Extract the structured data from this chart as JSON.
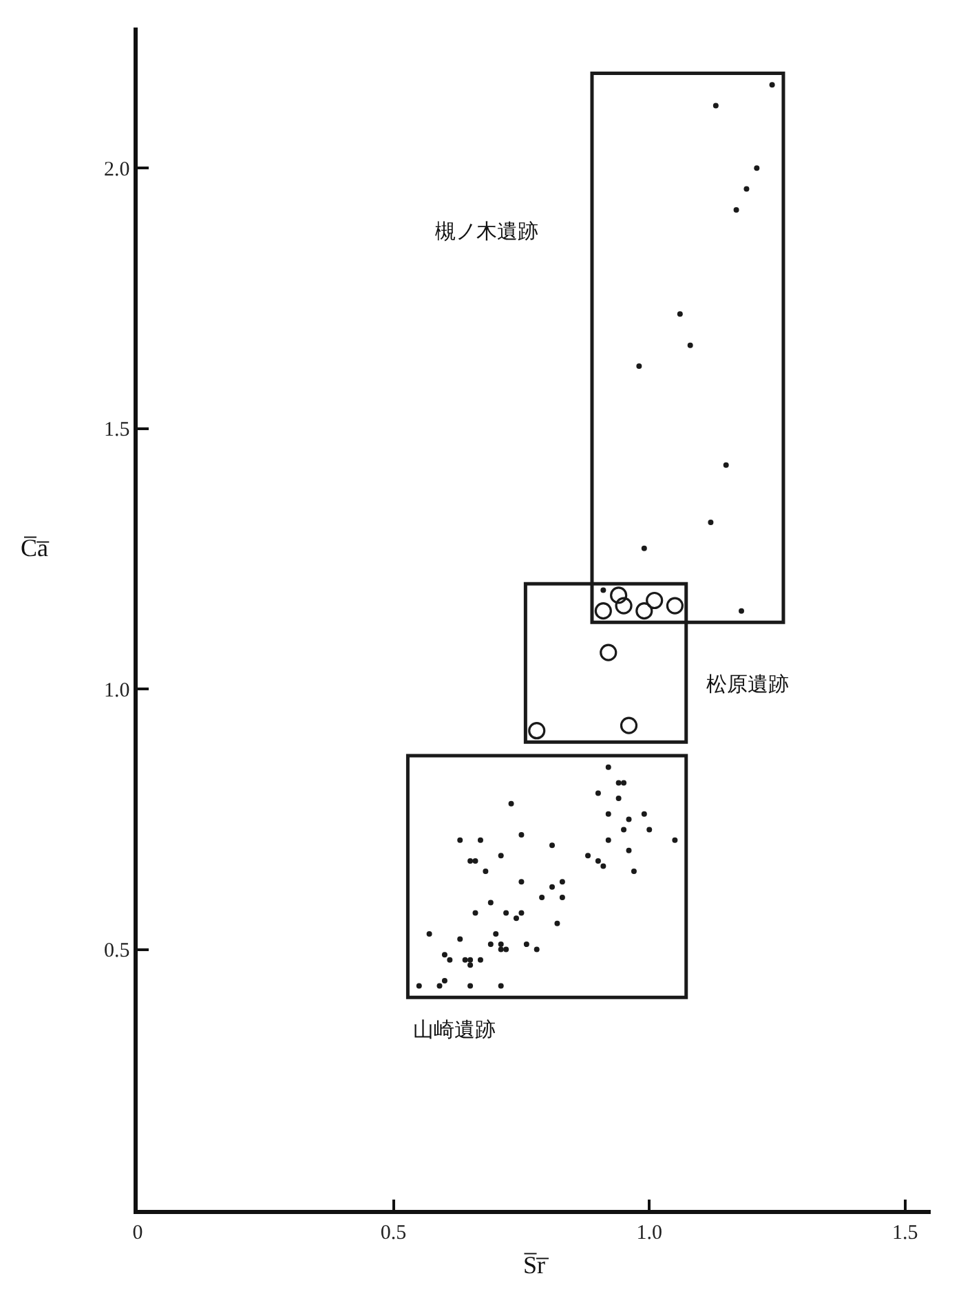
{
  "chart_data": {
    "type": "scatter",
    "xlabel": "S̅r̅",
    "ylabel": "C̅a̅",
    "xlim": [
      0,
      1.55
    ],
    "ylim": [
      0,
      2.27
    ],
    "xticks": [
      0,
      0.5,
      {
        "value": 1.0,
        "label": "1.0"
      },
      1.5
    ],
    "yticks": [
      0.5,
      {
        "value": 1.0,
        "label": "1.0"
      },
      1.5,
      {
        "value": 2.0,
        "label": "2.0"
      }
    ],
    "grid": false,
    "series": [
      {
        "color": "#1a1a1a",
        "x": [
          0.92,
          0.94,
          0.95,
          0.9,
          0.94,
          0.92,
          0.96,
          0.99,
          0.95,
          1.0,
          1.05,
          0.92,
          0.96,
          0.88,
          0.9,
          0.91,
          0.97,
          0.73,
          0.63,
          0.67,
          0.75,
          0.81,
          0.71,
          0.65,
          0.66,
          0.68,
          0.75,
          0.83,
          0.81,
          0.79,
          0.83,
          0.69,
          0.66,
          0.72,
          0.75,
          0.74,
          0.82,
          0.57,
          0.7,
          0.63,
          0.69,
          0.71,
          0.76,
          0.71,
          0.72,
          0.78,
          0.6,
          0.61,
          0.64,
          0.65,
          0.67,
          0.65,
          0.6,
          0.55,
          0.59,
          0.65,
          0.71
        ],
        "values": [
          0.85,
          0.82,
          0.82,
          0.8,
          0.79,
          0.76,
          0.75,
          0.76,
          0.73,
          0.73,
          0.71,
          0.71,
          0.69,
          0.68,
          0.67,
          0.66,
          0.65,
          0.78,
          0.71,
          0.71,
          0.72,
          0.7,
          0.68,
          0.67,
          0.67,
          0.65,
          0.63,
          0.63,
          0.62,
          0.6,
          0.6,
          0.59,
          0.57,
          0.57,
          0.57,
          0.56,
          0.55,
          0.53,
          0.53,
          0.52,
          0.51,
          0.51,
          0.51,
          0.5,
          0.5,
          0.5,
          0.49,
          0.48,
          0.48,
          0.48,
          0.48,
          0.47,
          0.44,
          0.43,
          0.43,
          0.43,
          0.43
        ]
      },
      {
        "color": "#1a1a1a",
        "x": [
          0.91,
          0.94,
          0.95,
          0.99,
          1.01,
          1.05,
          0.92,
          0.96,
          0.78
        ],
        "values": [
          1.15,
          1.18,
          1.16,
          1.15,
          1.17,
          1.16,
          1.07,
          0.93,
          0.92
        ]
      },
      {
        "color": "#1a1a1a",
        "x": [
          1.24,
          1.13,
          1.21,
          1.19,
          1.17,
          1.06,
          1.08,
          0.98,
          1.15,
          1.12,
          0.99,
          1.18,
          0.91
        ],
        "values": [
          2.16,
          2.12,
          2.0,
          1.96,
          1.92,
          1.72,
          1.66,
          1.62,
          1.43,
          1.32,
          1.27,
          1.15,
          1.19
        ]
      }
    ],
    "annotations": [
      "槻ノ木遺跡",
      "松原遺跡",
      "山崎遺跡"
    ]
  }
}
